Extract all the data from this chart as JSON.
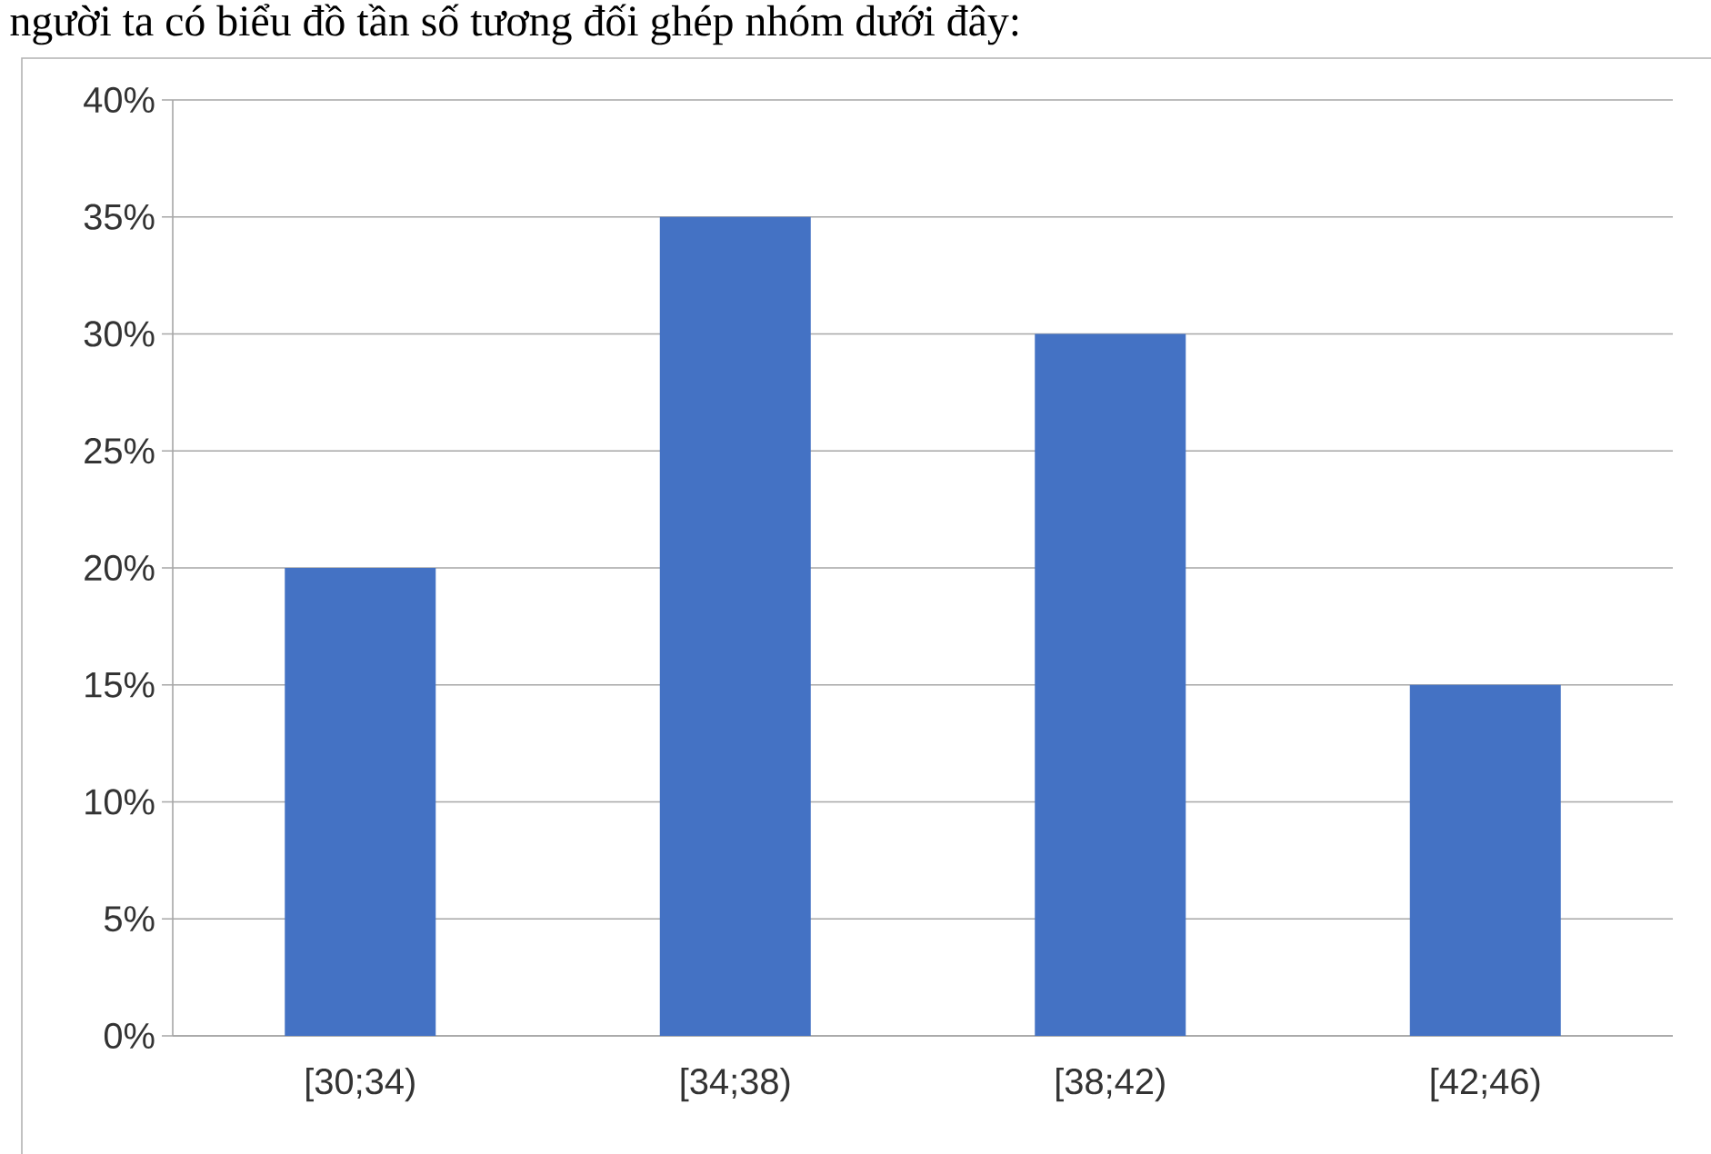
{
  "chart_data": {
    "type": "bar",
    "title": "người ta có biểu đồ tần số tương đối ghép nhóm dưới đây:",
    "categories": [
      "[30;34)",
      "[34;38)",
      "[38;42)",
      "[42;46)"
    ],
    "values": [
      20,
      35,
      30,
      15
    ],
    "color": "#4472c4",
    "ylim": [
      0,
      40
    ],
    "yticks": [
      {
        "value": 0,
        "label": "0%"
      },
      {
        "value": 5,
        "label": "5%"
      },
      {
        "value": 10,
        "label": "10%"
      },
      {
        "value": 15,
        "label": "15%"
      },
      {
        "value": 20,
        "label": "20%"
      },
      {
        "value": 25,
        "label": "25%"
      },
      {
        "value": 30,
        "label": "30%"
      },
      {
        "value": 35,
        "label": "35%"
      },
      {
        "value": 40,
        "label": "40%"
      }
    ],
    "grid": "y"
  }
}
